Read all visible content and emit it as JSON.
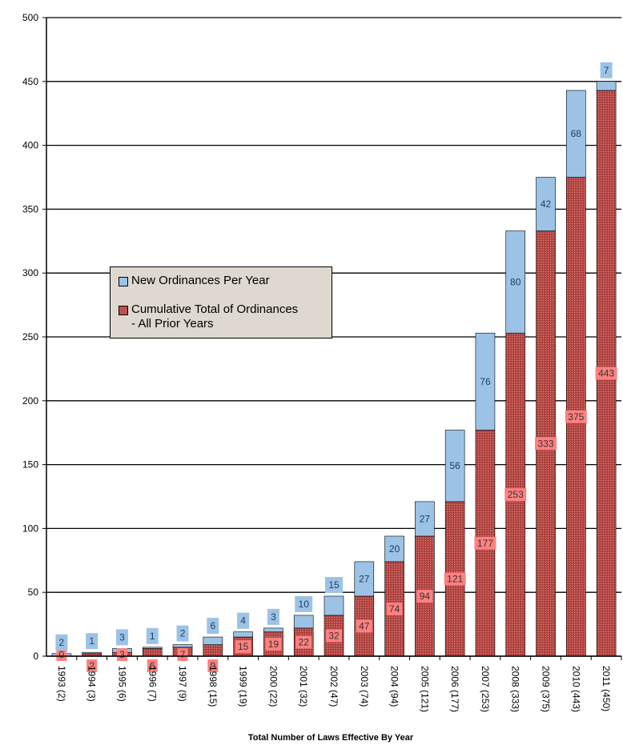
{
  "chart_data": {
    "type": "bar",
    "stacked": true,
    "title": "",
    "xlabel": "Total Number of Laws Effective By Year",
    "ylabel": "",
    "ylim": [
      0,
      500
    ],
    "yticks": [
      0,
      50,
      100,
      150,
      200,
      250,
      300,
      350,
      400,
      450,
      500
    ],
    "grid": "horizontal",
    "legend_position": "center-left",
    "categories": [
      "1993 (2)",
      "1994 (3)",
      "1995 (6)",
      "1996 (7)",
      "1997 (9)",
      "1998 (15)",
      "1999 (19)",
      "2000 (22)",
      "2001 (32)",
      "2002 (47)",
      "2003 (74)",
      "2004 (94)",
      "2005 (121)",
      "2006 (177)",
      "2007 (253)",
      "2008 (333)",
      "2009 (375)",
      "2010 (443)",
      "2011 (450)"
    ],
    "series": [
      {
        "name": "Cumulative Total of Ordinances\n- All Prior Years",
        "color": "#c0504d",
        "label_bg": "#ff8080",
        "values": [
          0,
          2,
          3,
          6,
          7,
          9,
          15,
          19,
          22,
          32,
          47,
          74,
          94,
          121,
          177,
          253,
          333,
          375,
          443
        ]
      },
      {
        "name": "New Ordinances Per Year",
        "color": "#9cc3e6",
        "label_bg": "#9cc3e6",
        "values": [
          2,
          1,
          3,
          1,
          2,
          6,
          4,
          3,
          10,
          15,
          27,
          20,
          27,
          56,
          76,
          80,
          42,
          68,
          7
        ]
      }
    ]
  }
}
